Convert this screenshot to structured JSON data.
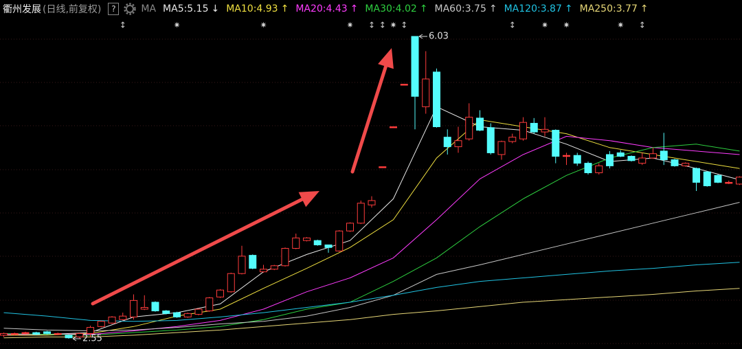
{
  "chart_data": {
    "type": "candlestick",
    "title": "衢州发展",
    "subtitle": "(日线,前复权)",
    "help": "?",
    "ma_label": "MA",
    "up_color": "#ff3c3c",
    "down_color": "#54fcfc",
    "open": [
      2.59,
      2.6,
      2.61,
      2.62,
      2.63,
      2.6,
      2.59,
      2.57,
      2.61,
      2.69,
      2.73,
      2.77,
      2.8,
      2.89,
      2.97,
      2.87,
      2.85,
      2.8,
      2.83,
      2.87,
      3.03,
      3.09,
      3.3,
      3.51,
      3.32,
      3.35,
      3.39,
      3.59,
      3.68,
      3.68,
      3.63,
      3.56,
      3.79,
      3.88,
      4.09,
      4.53,
      4.99,
      5.48,
      6.03,
      5.22,
      5.62,
      4.87,
      4.76,
      4.85,
      5.09,
      4.98,
      4.67,
      4.82,
      4.85,
      5.03,
      4.93,
      4.95,
      4.65,
      4.66,
      4.57,
      4.46,
      4.67,
      4.69,
      4.65,
      4.57,
      4.63,
      4.71,
      4.61,
      4.54,
      4.51,
      4.47,
      4.43,
      4.35,
      4.33
    ],
    "high": [
      2.62,
      2.62,
      2.63,
      2.63,
      2.64,
      2.62,
      2.6,
      2.62,
      2.7,
      2.76,
      2.81,
      2.85,
      3.06,
      3.05,
      2.98,
      2.88,
      2.86,
      2.85,
      2.9,
      3.03,
      3.12,
      3.31,
      3.62,
      3.52,
      3.4,
      3.4,
      3.6,
      3.76,
      3.72,
      3.69,
      3.63,
      3.8,
      3.89,
      4.14,
      4.19,
      4.53,
      4.99,
      5.48,
      6.03,
      5.86,
      5.66,
      4.96,
      4.99,
      5.26,
      5.18,
      5.03,
      4.83,
      4.91,
      5.1,
      5.09,
      5.1,
      4.96,
      4.69,
      4.69,
      4.59,
      4.57,
      4.71,
      4.72,
      4.66,
      4.69,
      4.75,
      4.92,
      4.62,
      4.58,
      4.52,
      4.48,
      4.44,
      4.37,
      4.42
    ],
    "low": [
      2.57,
      2.59,
      2.6,
      2.59,
      2.6,
      2.59,
      2.55,
      2.55,
      2.57,
      2.68,
      2.72,
      2.76,
      2.77,
      2.88,
      2.86,
      2.83,
      2.79,
      2.79,
      2.82,
      2.86,
      3.02,
      3.08,
      3.29,
      3.35,
      3.31,
      3.34,
      3.38,
      3.58,
      3.67,
      3.62,
      3.54,
      3.55,
      3.78,
      3.87,
      4.06,
      4.53,
      4.99,
      5.48,
      4.96,
      5.14,
      4.98,
      4.67,
      4.69,
      4.83,
      4.94,
      4.67,
      4.61,
      4.8,
      4.83,
      4.91,
      4.88,
      4.57,
      4.55,
      4.54,
      4.44,
      4.44,
      4.51,
      4.64,
      4.59,
      4.55,
      4.62,
      4.55,
      4.53,
      4.53,
      4.25,
      4.3,
      4.34,
      4.33,
      4.32
    ],
    "close": [
      2.61,
      2.61,
      2.62,
      2.6,
      2.61,
      2.61,
      2.56,
      2.61,
      2.68,
      2.75,
      2.8,
      2.81,
      2.99,
      2.91,
      2.87,
      2.84,
      2.8,
      2.84,
      2.89,
      3.02,
      3.11,
      3.3,
      3.5,
      3.36,
      3.35,
      3.39,
      3.59,
      3.71,
      3.71,
      3.63,
      3.6,
      3.79,
      3.88,
      4.11,
      4.14,
      4.53,
      4.99,
      5.48,
      5.34,
      5.54,
      4.99,
      4.76,
      4.83,
      5.1,
      4.95,
      4.69,
      4.82,
      4.87,
      5.04,
      4.93,
      4.96,
      4.65,
      4.66,
      4.57,
      4.46,
      4.54,
      4.54,
      4.65,
      4.6,
      4.63,
      4.68,
      4.61,
      4.54,
      4.57,
      4.35,
      4.31,
      4.35,
      4.35,
      4.41
    ],
    "markers": [
      null,
      null,
      null,
      null,
      null,
      null,
      null,
      null,
      null,
      null,
      null,
      "↕",
      null,
      null,
      null,
      null,
      "✷",
      null,
      null,
      null,
      null,
      null,
      null,
      null,
      "✷",
      null,
      null,
      null,
      null,
      null,
      null,
      null,
      "✷",
      null,
      "↕",
      "↕",
      "✷",
      "↕",
      null,
      null,
      null,
      null,
      null,
      null,
      null,
      null,
      null,
      "↕",
      null,
      null,
      "✷",
      null,
      "✷",
      null,
      null,
      null,
      null,
      "✷",
      null,
      "↕",
      null,
      null,
      null,
      null,
      null,
      null,
      null,
      null,
      null
    ],
    "ma_x": [
      0,
      4,
      8,
      12,
      16,
      20,
      24,
      28,
      32,
      36,
      40,
      44,
      48,
      52,
      56,
      60,
      64,
      68
    ],
    "series": [
      {
        "name": "MA5:5.15",
        "trend": "↓",
        "color": "#e8e8e8",
        "values": [
          2.59,
          2.6,
          2.62,
          2.8,
          2.85,
          2.95,
          3.32,
          3.52,
          3.68,
          4.16,
          5.22,
          4.99,
          4.95,
          4.79,
          4.59,
          4.63,
          4.51,
          4.38
        ]
      },
      {
        "name": "MA10:4.93",
        "trend": "↑",
        "color": "#f0e040",
        "values": [
          2.59,
          2.59,
          2.61,
          2.69,
          2.81,
          2.89,
          3.13,
          3.36,
          3.6,
          3.92,
          4.63,
          5.07,
          4.99,
          4.91,
          4.75,
          4.67,
          4.59,
          4.51
        ]
      },
      {
        "name": "MA20:4.43",
        "trend": "↑",
        "color": "#ff3cff",
        "values": [
          2.6,
          2.6,
          2.6,
          2.64,
          2.69,
          2.76,
          2.89,
          3.09,
          3.25,
          3.48,
          3.92,
          4.39,
          4.67,
          4.88,
          4.83,
          4.75,
          4.71,
          4.67
        ]
      },
      {
        "name": "MA30:4.02",
        "trend": "↑",
        "color": "#2ed040",
        "values": [
          2.61,
          2.6,
          2.59,
          2.62,
          2.65,
          2.69,
          2.77,
          2.89,
          2.97,
          3.21,
          3.48,
          3.84,
          4.16,
          4.43,
          4.63,
          4.75,
          4.79,
          4.71
        ]
      },
      {
        "name": "MA60:3.75",
        "trend": "↑",
        "color": "#c8c8c8",
        "values": [
          2.67,
          2.65,
          2.64,
          2.65,
          2.68,
          2.72,
          2.75,
          2.81,
          2.91,
          3.05,
          3.29,
          3.4,
          3.52,
          3.64,
          3.76,
          3.88,
          4.0,
          4.12
        ]
      },
      {
        "name": "MA120:3.87",
        "trend": "↑",
        "color": "#20c4e4",
        "values": [
          2.85,
          2.81,
          2.76,
          2.75,
          2.76,
          2.8,
          2.85,
          2.91,
          2.97,
          3.05,
          3.14,
          3.21,
          3.25,
          3.29,
          3.33,
          3.36,
          3.4,
          3.43
        ]
      },
      {
        "name": "MA250:3.77",
        "trend": "↑",
        "color": "#e8d878",
        "values": [
          2.56,
          2.57,
          2.57,
          2.59,
          2.62,
          2.65,
          2.69,
          2.73,
          2.77,
          2.83,
          2.87,
          2.92,
          2.97,
          3.0,
          3.03,
          3.06,
          3.1,
          3.13
        ]
      }
    ]
  }
}
